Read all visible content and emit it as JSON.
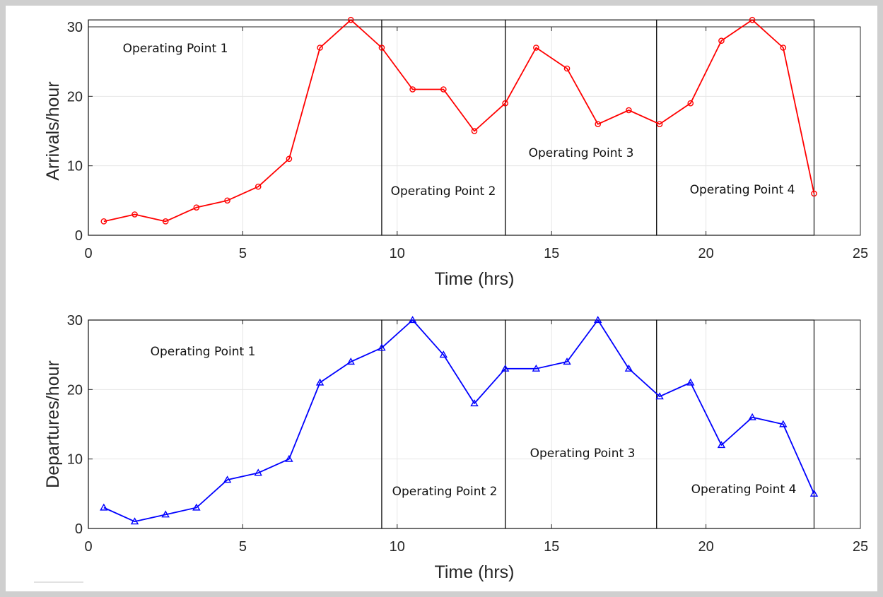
{
  "chart_data": [
    {
      "type": "line",
      "xlabel": "Time (hrs)",
      "ylabel": "Arrivals/hour",
      "xlim": [
        0,
        25
      ],
      "ylim": [
        0,
        30
      ],
      "xticks": [
        0,
        5,
        10,
        15,
        20,
        25
      ],
      "yticks": [
        0,
        10,
        20,
        30
      ],
      "grid": true,
      "marker": "circle",
      "color": "#ff0000",
      "x": [
        0.5,
        1.5,
        2.5,
        3.5,
        4.5,
        5.5,
        6.5,
        7.5,
        8.5,
        9.5,
        10.5,
        11.5,
        12.5,
        13.5,
        14.5,
        15.5,
        16.5,
        17.5,
        18.5,
        19.5,
        20.5,
        21.5,
        22.5,
        23.5
      ],
      "y": [
        2,
        3,
        2,
        4,
        5,
        7,
        11,
        27,
        31,
        27,
        21,
        21,
        15,
        19,
        27,
        24,
        16,
        18,
        16,
        19,
        28,
        31,
        27,
        6
      ],
      "regions": [
        {
          "label": "Operating Point 1",
          "x0": 0,
          "x1": 9.5,
          "y0": 0,
          "y1": 31
        },
        {
          "label": "Operating Point 2",
          "x0": 9.5,
          "x1": 13.5,
          "y0": 0,
          "y1": 31
        },
        {
          "label": "Operating Point 3",
          "x0": 13.5,
          "x1": 18.4,
          "y0": 0,
          "y1": 31
        },
        {
          "label": "Operating Point 4",
          "x0": 18.4,
          "x1": 23.5,
          "y0": 0,
          "y1": 31
        }
      ]
    },
    {
      "type": "line",
      "xlabel": "Time (hrs)",
      "ylabel": "Departures/hour",
      "xlim": [
        0,
        25
      ],
      "ylim": [
        0,
        30
      ],
      "xticks": [
        0,
        5,
        10,
        15,
        20,
        25
      ],
      "yticks": [
        0,
        10,
        20,
        30
      ],
      "grid": true,
      "marker": "triangle",
      "color": "#0000ff",
      "x": [
        0.5,
        1.5,
        2.5,
        3.5,
        4.5,
        5.5,
        6.5,
        7.5,
        8.5,
        9.5,
        10.5,
        11.5,
        12.5,
        13.5,
        14.5,
        15.5,
        16.5,
        17.5,
        18.5,
        19.5,
        20.5,
        21.5,
        22.5,
        23.5
      ],
      "y": [
        3,
        1,
        2,
        3,
        7,
        8,
        10,
        21,
        24,
        26,
        30,
        25,
        18,
        23,
        23,
        24,
        30,
        23,
        19,
        21,
        12,
        16,
        15,
        5
      ],
      "regions": [
        {
          "label": "Operating Point 1",
          "x0": 0,
          "x1": 9.5,
          "y0": 0,
          "y1": 30
        },
        {
          "label": "Operating Point 2",
          "x0": 9.5,
          "x1": 13.5,
          "y0": 0,
          "y1": 30
        },
        {
          "label": "Operating Point 3",
          "x0": 13.5,
          "x1": 18.4,
          "y0": 0,
          "y1": 30
        },
        {
          "label": "Operating Point 4",
          "x0": 18.4,
          "x1": 23.5,
          "y0": 0,
          "y1": 30
        }
      ]
    }
  ]
}
